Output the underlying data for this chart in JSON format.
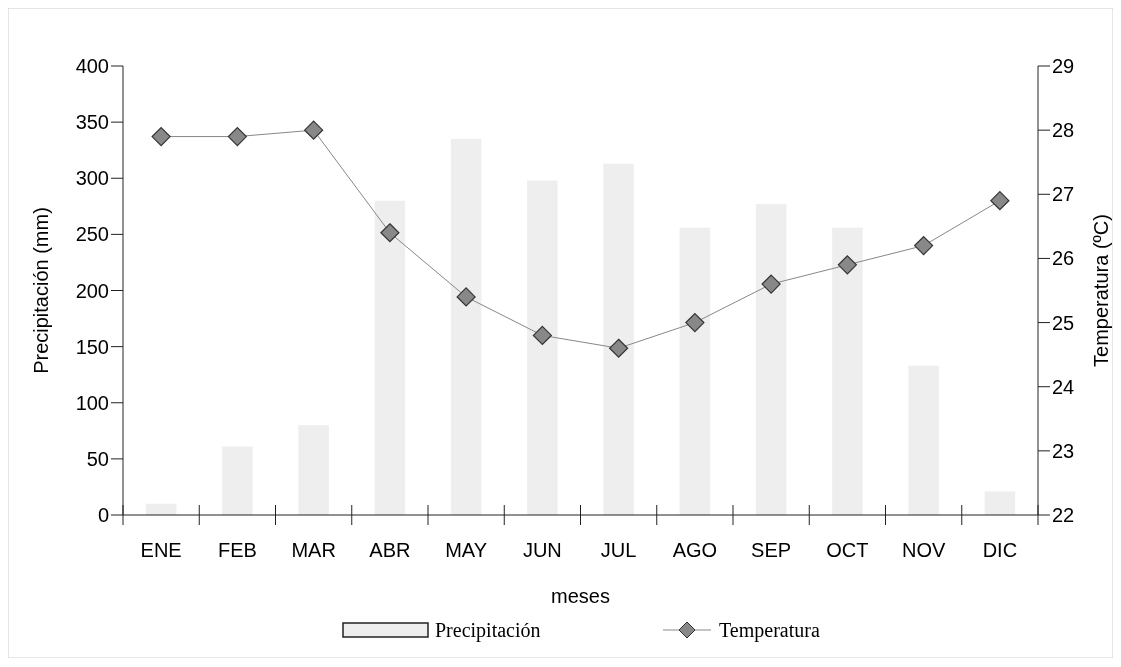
{
  "chart_data": {
    "type": "bar",
    "xlabel": "meses",
    "ylabel": "Precipitación (mm)",
    "y2label": "Temperatura (ºC)",
    "categories": [
      "ENE",
      "FEB",
      "MAR",
      "ABR",
      "MAY",
      "JUN",
      "JUL",
      "AGO",
      "SEP",
      "OCT",
      "NOV",
      "DIC"
    ],
    "series": [
      {
        "name": "Precipitación",
        "color": "#eeeeee",
        "values": [
          10,
          61,
          80,
          280,
          335,
          298,
          313,
          256,
          277,
          256,
          133,
          21
        ]
      },
      {
        "name": "Temperatura",
        "type": "line",
        "axis": "y2",
        "color": "#888888",
        "marker": "diamond",
        "values": [
          27.9,
          27.9,
          28.0,
          26.4,
          25.4,
          24.8,
          24.6,
          25.0,
          25.6,
          25.9,
          26.2,
          26.9
        ]
      }
    ],
    "ylim": [
      0,
      400
    ],
    "yticks": [
      0,
      50,
      100,
      150,
      200,
      250,
      300,
      350,
      400
    ],
    "y2lim": [
      22,
      29
    ],
    "y2ticks": [
      22,
      23,
      24,
      25,
      26,
      27,
      28,
      29
    ],
    "legend": "bottom",
    "grid": false
  }
}
